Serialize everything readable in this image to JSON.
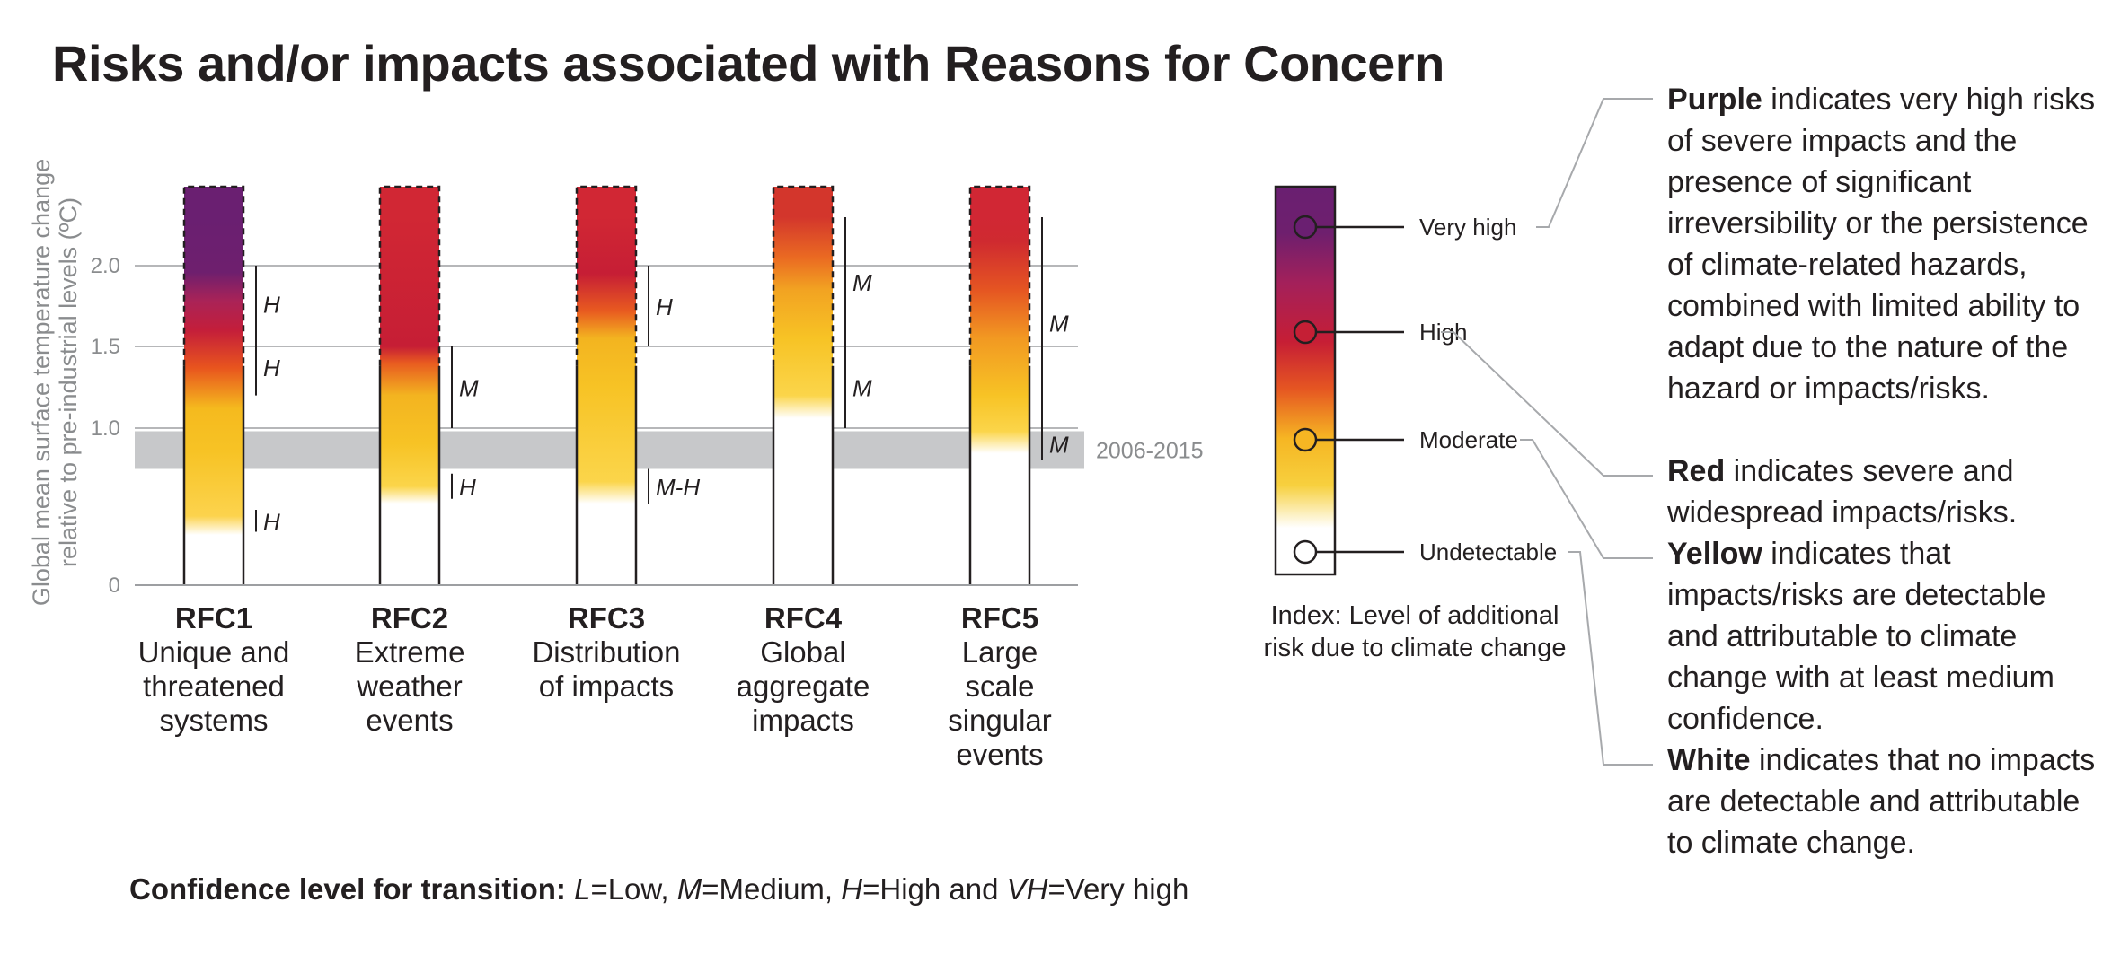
{
  "title": "Risks and/or impacts associated with Reasons for Concern",
  "chart_data": {
    "type": "bar",
    "ylabel_line1": "Global mean surface temperature change",
    "ylabel_line2": "relative to pre-industrial levels (ºC)",
    "yticks": [
      "0",
      "1.0",
      "1.5",
      "2.0"
    ],
    "ylim": [
      0,
      2.3
    ],
    "grid": true,
    "reference_band": {
      "label": "2006-2015",
      "from": 0.74,
      "to": 0.98
    },
    "bars": [
      {
        "code": "RFC1",
        "name": "Unique and\nthreatened\nsystems",
        "stops": [
          [
            0.32,
            "#ffffff"
          ],
          [
            0.44,
            "#fcd34d"
          ],
          [
            0.85,
            "#f7c325"
          ],
          [
            1.12,
            "#f5ba1e"
          ],
          [
            1.37,
            "#e8541e"
          ],
          [
            1.6,
            "#c41e3a"
          ],
          [
            1.78,
            "#aa2357"
          ],
          [
            1.96,
            "#6e1f6e"
          ],
          [
            2.3,
            "#6a1f71"
          ]
        ],
        "transitions": [
          {
            "from": 0.34,
            "to": 0.48,
            "confidence": "H"
          },
          {
            "from": 1.2,
            "to": 1.55,
            "confidence": "H"
          },
          {
            "from": 1.53,
            "to": 2.0,
            "confidence": "H"
          }
        ]
      },
      {
        "code": "RFC2",
        "name": "Extreme\nweather\nevents",
        "stops": [
          [
            0.52,
            "#ffffff"
          ],
          [
            0.63,
            "#fbd54a"
          ],
          [
            0.9,
            "#f7c325"
          ],
          [
            1.2,
            "#f3b420"
          ],
          [
            1.4,
            "#e85a20"
          ],
          [
            1.5,
            "#c61e35"
          ],
          [
            2.3,
            "#d12734"
          ]
        ],
        "transitions": [
          {
            "from": 0.55,
            "to": 0.71,
            "confidence": "H"
          },
          {
            "from": 1.0,
            "to": 1.5,
            "confidence": "M"
          }
        ]
      },
      {
        "code": "RFC3",
        "name": "Distribution\nof impacts",
        "stops": [
          [
            0.52,
            "#ffffff"
          ],
          [
            0.66,
            "#fbd54a"
          ],
          [
            1.25,
            "#f7c325"
          ],
          [
            1.55,
            "#f3b420"
          ],
          [
            1.72,
            "#e85a20"
          ],
          [
            1.95,
            "#c61e35"
          ],
          [
            2.3,
            "#d12734"
          ]
        ],
        "transitions": [
          {
            "from": 0.52,
            "to": 0.74,
            "confidence": "M-H"
          },
          {
            "from": 1.5,
            "to": 2.0,
            "confidence": "H"
          }
        ]
      },
      {
        "code": "RFC4",
        "name": "Global\naggregate\nimpacts",
        "stops": [
          [
            1.06,
            "#ffffff"
          ],
          [
            1.2,
            "#fbd54a"
          ],
          [
            1.55,
            "#f7c325"
          ],
          [
            1.85,
            "#f2a322"
          ],
          [
            2.05,
            "#ea6a22"
          ],
          [
            2.3,
            "#d3362c"
          ]
        ],
        "transitions": [
          {
            "from": 1.0,
            "to": 1.5,
            "confidence": "M"
          },
          {
            "from": 1.5,
            "to": 2.5,
            "confidence": "M"
          }
        ]
      },
      {
        "code": "RFC5",
        "name": "Large\nscale\nsingular\nevents",
        "stops": [
          [
            0.84,
            "#ffffff"
          ],
          [
            0.98,
            "#fbd54a"
          ],
          [
            1.2,
            "#f7c325"
          ],
          [
            1.55,
            "#f29922"
          ],
          [
            1.85,
            "#e55522"
          ],
          [
            2.15,
            "#cf2a30"
          ],
          [
            2.3,
            "#d12734"
          ]
        ],
        "transitions": [
          {
            "from": 0.8,
            "to": 1.0,
            "confidence": "M"
          },
          {
            "from": 1.0,
            "to": 2.5,
            "confidence": "M"
          }
        ]
      }
    ]
  },
  "index": {
    "levels": [
      {
        "label": "Very high",
        "color": "#6a1f71",
        "dot_fill": "#6a1f71"
      },
      {
        "label": "High",
        "color": "#c51f35",
        "dot_fill": "#c51f35"
      },
      {
        "label": "Moderate",
        "color": "#f6b623",
        "dot_fill": "#f6b623"
      },
      {
        "label": "Undetectable",
        "color": "#ffffff",
        "dot_fill": "#ffffff"
      }
    ],
    "caption": "Index: Level of additional\nrisk due to climate change"
  },
  "descriptions": [
    {
      "key": "Purple",
      "text": " indicates very high risks of severe impacts and the presence of significant irreversibility or the persistence of climate-related hazards, combined with limited ability to adapt due to the nature of the hazard or impacts/risks."
    },
    {
      "key": "Red",
      "text": " indicates severe and widespread impacts/risks."
    },
    {
      "key": "Yellow",
      "text": " indicates that impacts/risks are detectable and attributable to climate change with at least medium confidence."
    },
    {
      "key": "White",
      "text": " indicates that no impacts are detectable and attributable to climate change."
    }
  ],
  "confidence_legend": {
    "prefix": "Confidence level  for transition: ",
    "items": [
      {
        "code": "L",
        "meaning": "=Low, "
      },
      {
        "code": "M",
        "meaning": "=Medium, "
      },
      {
        "code": "H",
        "meaning": "=High and "
      },
      {
        "code": "VH",
        "meaning": "=Very high"
      }
    ]
  },
  "colors": {
    "axis": "#8a8c8e",
    "grid": "#9d9fa2",
    "band": "#c7c8ca",
    "text": "#231f20",
    "leader": "#a7a9ac"
  }
}
